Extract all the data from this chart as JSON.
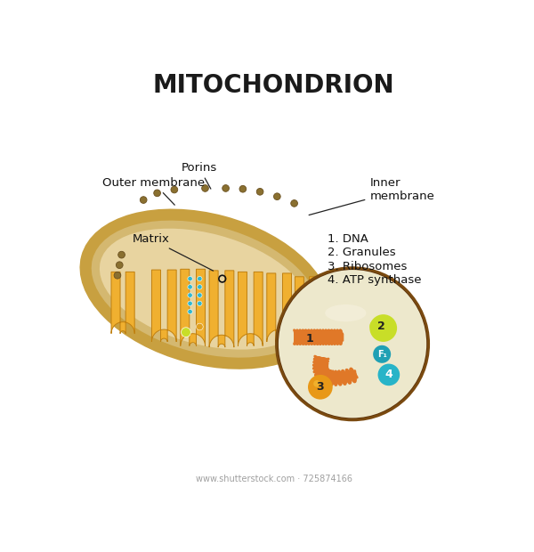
{
  "title": "MITOCHONDRION",
  "title_fontsize": 20,
  "title_color": "#1a1a1a",
  "background_color": "#ffffff",
  "legend_items": [
    "1. DNA",
    "2. Granules",
    "3. Ribosomes",
    "4. ATP synthase"
  ],
  "watermark": "www.shutterstock.com · 725874166",
  "colors": {
    "outer_body": "#c8a040",
    "outer_body_light": "#d4b060",
    "membrane_ring": "#c8a040",
    "inner_space": "#d4b870",
    "matrix": "#e8d4a0",
    "cristae_fill": "#f0b030",
    "cristae_highlight": "#f8c840",
    "cristae_shadow": "#c08010",
    "zoom_bg": "#ede8cc",
    "zoom_bg2": "#f5f0dc",
    "zoom_border": "#7a4a10",
    "zoom_border2": "#5a3008",
    "dna_orange": "#e07828",
    "ribosome": "#e89818",
    "granule": "#c8de28",
    "atp_teal": "#28b4c8",
    "atp_f1": "#20a0b4",
    "small_dot_teal": "#30b8d0",
    "small_dot_yellow": "#d8cc00",
    "small_dot_orange": "#e0a020",
    "porin": "#8a7030",
    "label_color": "#111111",
    "line_color": "#222222",
    "watermark_color": "#888888"
  }
}
